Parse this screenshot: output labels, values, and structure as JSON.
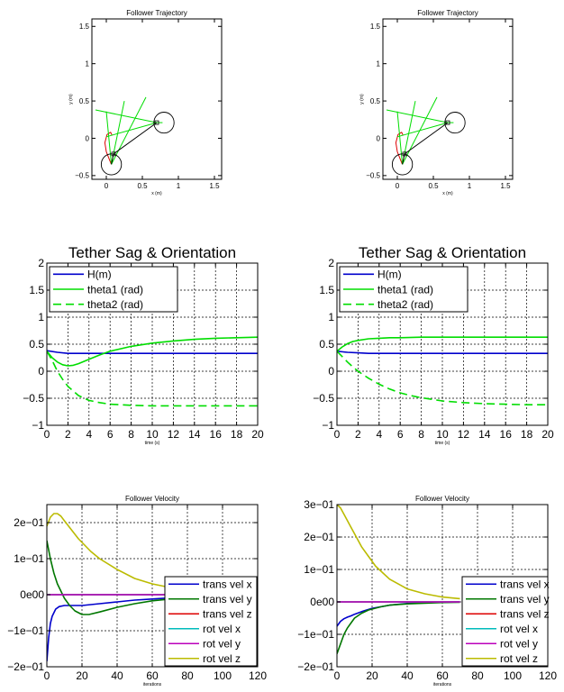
{
  "chart_data": [
    {
      "type": "line",
      "title": "Follower Trajectory",
      "xlabel": "x (m)",
      "ylabel": "y (m)",
      "xlim": [
        -0.2,
        1.6
      ],
      "ylim": [
        -0.55,
        1.6
      ],
      "xticks": [
        "0",
        "0.5",
        "1",
        "1.5"
      ],
      "yticks": [
        "−0.5",
        "0",
        "0.5",
        "1",
        "1.5"
      ],
      "grid": false,
      "series": [
        {
          "color": "#dd0000",
          "x": [
            0.07,
            0.04,
            0.0,
            -0.02,
            0.01,
            0.06,
            0.08
          ],
          "y": [
            -0.35,
            -0.28,
            -0.18,
            -0.06,
            0.05,
            0.08,
            0.04
          ]
        },
        {
          "color": "#00dd00",
          "x": [
            0.07,
            0.0
          ],
          "y": [
            -0.35,
            0.36
          ]
        },
        {
          "color": "#00dd00",
          "x": [
            0.07,
            0.25
          ],
          "y": [
            -0.35,
            0.5
          ]
        },
        {
          "color": "#00dd00",
          "x": [
            0.07,
            0.55
          ],
          "y": [
            -0.35,
            0.55
          ]
        },
        {
          "color": "#00dd00",
          "x": [
            -0.15,
            0.7
          ],
          "y": [
            0.38,
            0.21
          ]
        },
        {
          "color": "#00dd00",
          "x": [
            0.0,
            0.7
          ],
          "y": [
            0.02,
            0.21
          ]
        },
        {
          "color": "#00dd00",
          "x": [
            0.7,
            0.78
          ],
          "y": [
            0.21,
            0.21
          ]
        },
        {
          "color": "#000000",
          "x": [
            0.1,
            0.7
          ],
          "y": [
            -0.21,
            0.21
          ]
        },
        {
          "color": "#000000",
          "x": [
            0.07,
            0.1
          ],
          "y": [
            -0.35,
            -0.21
          ]
        }
      ],
      "circles": [
        {
          "cx": 0.07,
          "cy": -0.35,
          "r": 0.14
        },
        {
          "cx": 0.8,
          "cy": 0.21,
          "r": 0.14
        }
      ],
      "boxes": [
        {
          "x": 0.1,
          "y": -0.21
        },
        {
          "x": 0.7,
          "y": 0.21
        }
      ]
    },
    {
      "type": "line",
      "title": "Follower Trajectory",
      "xlabel": "x (m)",
      "ylabel": "y (m)",
      "xlim": [
        -0.2,
        1.6
      ],
      "ylim": [
        -0.55,
        1.6
      ],
      "xticks": [
        "0",
        "0.5",
        "1",
        "1.5"
      ],
      "yticks": [
        "−0.5",
        "0",
        "0.5",
        "1",
        "1.5"
      ],
      "grid": false,
      "series": [
        {
          "color": "#dd0000",
          "x": [
            0.07,
            0.04,
            0.0,
            -0.02,
            0.01,
            0.06,
            0.08
          ],
          "y": [
            -0.35,
            -0.28,
            -0.18,
            -0.06,
            0.05,
            0.08,
            0.04
          ]
        },
        {
          "color": "#00dd00",
          "x": [
            0.07,
            0.0
          ],
          "y": [
            -0.35,
            0.36
          ]
        },
        {
          "color": "#00dd00",
          "x": [
            0.07,
            0.25
          ],
          "y": [
            -0.35,
            0.5
          ]
        },
        {
          "color": "#00dd00",
          "x": [
            0.07,
            0.55
          ],
          "y": [
            -0.35,
            0.55
          ]
        },
        {
          "color": "#00dd00",
          "x": [
            -0.15,
            0.7
          ],
          "y": [
            0.38,
            0.21
          ]
        },
        {
          "color": "#00dd00",
          "x": [
            0.0,
            0.7
          ],
          "y": [
            0.02,
            0.21
          ]
        },
        {
          "color": "#00dd00",
          "x": [
            0.7,
            0.78
          ],
          "y": [
            0.21,
            0.21
          ]
        },
        {
          "color": "#000000",
          "x": [
            0.1,
            0.7
          ],
          "y": [
            -0.21,
            0.21
          ]
        },
        {
          "color": "#000000",
          "x": [
            0.07,
            0.1
          ],
          "y": [
            -0.35,
            -0.21
          ]
        }
      ],
      "circles": [
        {
          "cx": 0.07,
          "cy": -0.35,
          "r": 0.14
        },
        {
          "cx": 0.8,
          "cy": 0.21,
          "r": 0.14
        }
      ],
      "boxes": [
        {
          "x": 0.1,
          "y": -0.21
        },
        {
          "x": 0.7,
          "y": 0.21
        }
      ]
    },
    {
      "type": "line",
      "title": "Tether Sag & Orientation",
      "xlabel": "time (s)",
      "ylabel": "",
      "xlim": [
        0,
        20
      ],
      "ylim": [
        -1,
        2
      ],
      "xticks": [
        "0",
        "2",
        "4",
        "6",
        "8",
        "10",
        "12",
        "14",
        "16",
        "18",
        "20"
      ],
      "yticks": [
        "−1",
        "−0.5",
        "0",
        "0.5",
        "1",
        "1.5",
        "2"
      ],
      "grid": true,
      "legend": "top-left",
      "series": [
        {
          "name": "H(m)",
          "color": "#0000cc",
          "dash": "",
          "x": [
            0,
            1,
            2,
            3,
            4,
            6,
            10,
            15,
            20
          ],
          "y": [
            0.38,
            0.35,
            0.33,
            0.33,
            0.33,
            0.33,
            0.33,
            0.33,
            0.33
          ]
        },
        {
          "name": "theta1 (rad)",
          "color": "#00dd00",
          "dash": "",
          "x": [
            0,
            0.5,
            1,
            1.5,
            2,
            2.5,
            3,
            4,
            5,
            6,
            8,
            10,
            12,
            14,
            16,
            18,
            20
          ],
          "y": [
            0.37,
            0.25,
            0.17,
            0.12,
            0.1,
            0.11,
            0.14,
            0.22,
            0.3,
            0.37,
            0.46,
            0.52,
            0.56,
            0.59,
            0.61,
            0.62,
            0.63
          ]
        },
        {
          "name": "theta2 (rad)",
          "color": "#00dd00",
          "dash": "9,5",
          "x": [
            0,
            0.5,
            1,
            1.5,
            2,
            3,
            4,
            5,
            6,
            8,
            10,
            12,
            14,
            16,
            18,
            20
          ],
          "y": [
            0.37,
            0.2,
            0.0,
            -0.15,
            -0.28,
            -0.45,
            -0.54,
            -0.58,
            -0.61,
            -0.63,
            -0.64,
            -0.64,
            -0.64,
            -0.64,
            -0.64,
            -0.64
          ]
        }
      ]
    },
    {
      "type": "line",
      "title": "Tether Sag & Orientation",
      "xlabel": "time (s)",
      "ylabel": "",
      "xlim": [
        0,
        20
      ],
      "ylim": [
        -1,
        2
      ],
      "xticks": [
        "0",
        "2",
        "4",
        "6",
        "8",
        "10",
        "12",
        "14",
        "16",
        "18",
        "20"
      ],
      "yticks": [
        "−1",
        "−0.5",
        "0",
        "0.5",
        "1",
        "1.5",
        "2"
      ],
      "grid": true,
      "legend": "top-left",
      "series": [
        {
          "name": "H(m)",
          "color": "#0000cc",
          "dash": "",
          "x": [
            0,
            1,
            2,
            3,
            4,
            6,
            10,
            15,
            20
          ],
          "y": [
            0.37,
            0.35,
            0.34,
            0.33,
            0.33,
            0.33,
            0.33,
            0.33,
            0.33
          ]
        },
        {
          "name": "theta1 (rad)",
          "color": "#00dd00",
          "dash": "",
          "x": [
            0,
            0.5,
            1,
            1.5,
            2,
            3,
            4,
            5,
            6,
            8,
            10,
            14,
            20
          ],
          "y": [
            0.37,
            0.45,
            0.51,
            0.55,
            0.57,
            0.6,
            0.61,
            0.62,
            0.62,
            0.63,
            0.63,
            0.63,
            0.63
          ]
        },
        {
          "name": "theta2 (rad)",
          "color": "#00dd00",
          "dash": "9,5",
          "x": [
            0,
            0.5,
            1,
            1.5,
            2,
            3,
            4,
            5,
            6,
            7,
            8,
            10,
            12,
            14,
            16,
            18,
            20
          ],
          "y": [
            0.37,
            0.27,
            0.17,
            0.08,
            0.0,
            -0.13,
            -0.24,
            -0.33,
            -0.4,
            -0.45,
            -0.49,
            -0.55,
            -0.58,
            -0.6,
            -0.61,
            -0.62,
            -0.62
          ]
        }
      ]
    },
    {
      "type": "line",
      "title": "Follower Velocity",
      "xlabel": "iterations",
      "ylabel": "",
      "xlim": [
        0,
        120
      ],
      "ylim": [
        -0.2,
        0.25
      ],
      "xticks": [
        "0",
        "20",
        "40",
        "60",
        "80",
        "100",
        "120"
      ],
      "yticks": [
        "−2e−01",
        "−1e−01",
        "0e00",
        "1e−01",
        "2e−01"
      ],
      "ytick_values": [
        -0.2,
        -0.1,
        0,
        0.1,
        0.2
      ],
      "grid": true,
      "legend": "bottom-right",
      "series": [
        {
          "name": "trans vel x",
          "color": "#0000cc",
          "x": [
            0,
            1,
            2,
            3,
            5,
            7,
            10,
            15,
            20,
            30,
            40,
            50,
            60,
            70
          ],
          "y": [
            -0.185,
            -0.12,
            -0.08,
            -0.06,
            -0.04,
            -0.033,
            -0.03,
            -0.03,
            -0.03,
            -0.025,
            -0.02,
            -0.015,
            -0.012,
            -0.009
          ]
        },
        {
          "name": "trans vel y",
          "color": "#007700",
          "x": [
            0,
            2,
            4,
            6,
            8,
            10,
            13,
            16,
            20,
            24,
            30,
            40,
            50,
            60,
            70
          ],
          "y": [
            0.15,
            0.1,
            0.06,
            0.03,
            0.01,
            -0.01,
            -0.03,
            -0.045,
            -0.055,
            -0.055,
            -0.048,
            -0.035,
            -0.025,
            -0.017,
            -0.012
          ]
        },
        {
          "name": "trans vel z",
          "color": "#dd0000",
          "x": [
            0,
            70
          ],
          "y": [
            0,
            0
          ]
        },
        {
          "name": "rot vel x",
          "color": "#00bbbb",
          "x": [
            0,
            70
          ],
          "y": [
            0,
            0
          ]
        },
        {
          "name": "rot vel y",
          "color": "#bb00bb",
          "x": [
            0,
            70
          ],
          "y": [
            0,
            0
          ]
        },
        {
          "name": "rot vel z",
          "color": "#bbbb00",
          "x": [
            0,
            2,
            4,
            6,
            8,
            10,
            14,
            18,
            25,
            30,
            40,
            50,
            60,
            70
          ],
          "y": [
            0.19,
            0.215,
            0.225,
            0.225,
            0.218,
            0.205,
            0.18,
            0.155,
            0.12,
            0.1,
            0.07,
            0.045,
            0.03,
            0.02
          ]
        }
      ]
    },
    {
      "type": "line",
      "title": "Follower Velocity",
      "xlabel": "iterations",
      "ylabel": "",
      "xlim": [
        0,
        120
      ],
      "ylim": [
        -0.2,
        0.3
      ],
      "xticks": [
        "0",
        "20",
        "40",
        "60",
        "80",
        "100",
        "120"
      ],
      "yticks": [
        "−2e−01",
        "−1e−01",
        "0e00",
        "1e−01",
        "2e−01",
        "3e−01"
      ],
      "ytick_values": [
        -0.2,
        -0.1,
        0,
        0.1,
        0.2,
        0.3
      ],
      "grid": true,
      "legend": "bottom-right",
      "series": [
        {
          "name": "trans vel x",
          "color": "#0000cc",
          "x": [
            0,
            2,
            4,
            6,
            8,
            10,
            15,
            20,
            30,
            40,
            50,
            60,
            70
          ],
          "y": [
            -0.075,
            -0.06,
            -0.052,
            -0.047,
            -0.043,
            -0.038,
            -0.028,
            -0.02,
            -0.01,
            -0.005,
            -0.002,
            -0.001,
            0.0
          ]
        },
        {
          "name": "trans vel y",
          "color": "#007700",
          "x": [
            0,
            2,
            4,
            6,
            8,
            10,
            14,
            18,
            25,
            30,
            40,
            50,
            60,
            70
          ],
          "y": [
            -0.16,
            -0.13,
            -0.1,
            -0.08,
            -0.065,
            -0.05,
            -0.035,
            -0.025,
            -0.015,
            -0.01,
            -0.006,
            -0.004,
            -0.002,
            -0.001
          ]
        },
        {
          "name": "trans vel z",
          "color": "#dd0000",
          "x": [
            0,
            70
          ],
          "y": [
            0,
            0
          ]
        },
        {
          "name": "rot vel x",
          "color": "#00bbbb",
          "x": [
            0,
            70
          ],
          "y": [
            0,
            0
          ]
        },
        {
          "name": "rot vel y",
          "color": "#bb00bb",
          "x": [
            0,
            70
          ],
          "y": [
            0,
            0
          ]
        },
        {
          "name": "rot vel z",
          "color": "#bbbb00",
          "x": [
            0,
            2,
            4,
            6,
            8,
            10,
            14,
            18,
            22,
            26,
            30,
            35,
            40,
            50,
            60,
            70
          ],
          "y": [
            0.3,
            0.29,
            0.27,
            0.25,
            0.23,
            0.21,
            0.17,
            0.14,
            0.11,
            0.09,
            0.07,
            0.055,
            0.04,
            0.025,
            0.015,
            0.01
          ]
        }
      ]
    }
  ]
}
